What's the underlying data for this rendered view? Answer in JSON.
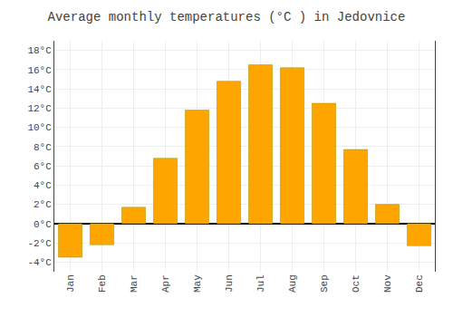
{
  "chart_data": {
    "type": "bar",
    "title": "Average monthly temperatures (°C ) in Jedovnice",
    "categories": [
      "Jan",
      "Feb",
      "Mar",
      "Apr",
      "May",
      "Jun",
      "Jul",
      "Aug",
      "Sep",
      "Oct",
      "Nov",
      "Dec"
    ],
    "values": [
      -3.5,
      -2.2,
      1.7,
      6.8,
      11.8,
      14.8,
      16.5,
      16.2,
      12.5,
      7.7,
      2.0,
      -2.3
    ],
    "color": "#FFA500",
    "ylim": [
      -5,
      19
    ],
    "yticks": [
      {
        "value": -4,
        "label": "-4°C"
      },
      {
        "value": -2,
        "label": "-2°C"
      },
      {
        "value": 0,
        "label": "0°C"
      },
      {
        "value": 2,
        "label": "2°C"
      },
      {
        "value": 4,
        "label": "4°C"
      },
      {
        "value": 6,
        "label": "6°C"
      },
      {
        "value": 8,
        "label": "8°C"
      },
      {
        "value": 10,
        "label": "10°C"
      },
      {
        "value": 12,
        "label": "12°C"
      },
      {
        "value": 14,
        "label": "14°C"
      },
      {
        "value": 16,
        "label": "16°C"
      },
      {
        "value": 18,
        "label": "18°C"
      }
    ],
    "grid": true
  }
}
